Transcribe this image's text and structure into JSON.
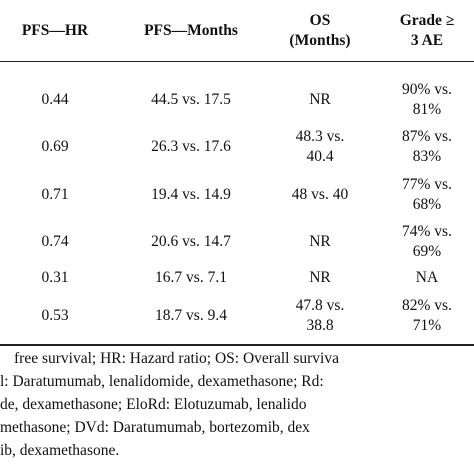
{
  "table": {
    "headers": {
      "pfs_hr": "PFS—HR",
      "pfs_months": "PFS—Months",
      "os_line1": "OS",
      "os_line2": "(Months)",
      "grade_line1": "Grade ≥",
      "grade_line2": "3 AE"
    },
    "rows": [
      {
        "pfs_hr": "0.44",
        "pfs_months": "44.5 vs. 17.5",
        "os": [
          "NR"
        ],
        "ae": [
          "90% vs.",
          "81%"
        ]
      },
      {
        "pfs_hr": "0.69",
        "pfs_months": "26.3 vs. 17.6",
        "os": [
          "48.3 vs.",
          "40.4"
        ],
        "ae": [
          "87% vs.",
          "83%"
        ]
      },
      {
        "pfs_hr": "0.71",
        "pfs_months": "19.4 vs. 14.9",
        "os": [
          "48 vs. 40"
        ],
        "ae": [
          "77% vs.",
          "68%"
        ]
      },
      {
        "pfs_hr": "0.74",
        "pfs_months": "20.6 vs. 14.7",
        "os": [
          "NR"
        ],
        "ae": [
          "74% vs.",
          "69%"
        ]
      },
      {
        "pfs_hr": "0.31",
        "pfs_months": "16.7 vs. 7.1",
        "os": [
          "NR"
        ],
        "ae": [
          "NA"
        ]
      },
      {
        "pfs_hr": "0.53",
        "pfs_months": "18.7 vs. 9.4",
        "os": [
          "47.8 vs.",
          "38.8"
        ],
        "ae": [
          "82% vs.",
          "71%"
        ]
      }
    ]
  },
  "footnotes": [
    "free survival; HR: Hazard ratio; OS: Overall surviva",
    "l: Daratumumab, lenalidomide, dexamethasone; Rd:",
    "de, dexamethasone; EloRd:  Elotuzumab, lenalido",
    "methasone; DVd:  Daratumumab, bortezomib, dex",
    "ib, dexamethasone."
  ]
}
